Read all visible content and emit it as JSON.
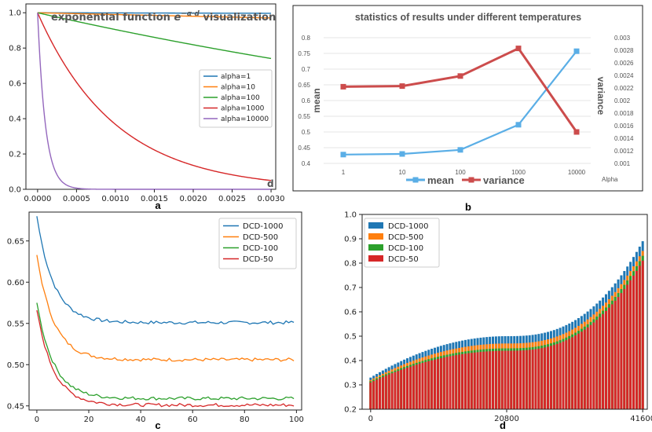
{
  "chart_data": [
    {
      "panel": "a",
      "type": "line",
      "title_text": "exponential function",
      "title_math": "e",
      "title_sup": "−α·d",
      "title_suffix": "visualization",
      "corner_label": "d",
      "xlim": [
        0,
        0.003
      ],
      "ylim": [
        0,
        1.05
      ],
      "x_ticks": [
        "0.0000",
        "0.0005",
        "0.0010",
        "0.0015",
        "0.0020",
        "0.0025",
        "0.0030"
      ],
      "x_tick_values": [
        0,
        0.0005,
        0.001,
        0.0015,
        0.002,
        0.0025,
        0.003
      ],
      "y_ticks": [
        "0.0",
        "0.2",
        "0.4",
        "0.6",
        "0.8",
        "1.0"
      ],
      "y_tick_values": [
        0,
        0.2,
        0.4,
        0.6,
        0.8,
        1.0
      ],
      "series": [
        {
          "name": "alpha=1",
          "alpha": 1,
          "color": "#1f77b4"
        },
        {
          "name": "alpha=10",
          "alpha": 10,
          "color": "#ff7f0e"
        },
        {
          "name": "alpha=100",
          "alpha": 100,
          "color": "#2ca02c"
        },
        {
          "name": "alpha=1000",
          "alpha": 1000,
          "color": "#d62728"
        },
        {
          "name": "alpha=10000",
          "alpha": 10000,
          "color": "#9467bd"
        }
      ]
    },
    {
      "panel": "b",
      "type": "line",
      "title": "statistics of results under different temperatures",
      "categories": [
        "1",
        "10",
        "100",
        "1000",
        "10000"
      ],
      "xlabel": "Alpha",
      "ylabel_left": "mean",
      "ylabel_right": "variance",
      "left_lim": [
        0.4,
        0.8
      ],
      "left_ticks": [
        "0.4",
        "0.45",
        "0.5",
        "0.55",
        "0.6",
        "0.65",
        "0.7",
        "0.75",
        "0.8"
      ],
      "right_lim": [
        0.001,
        0.003
      ],
      "right_ticks": [
        "0.001",
        "0.0012",
        "0.0014",
        "0.0016",
        "0.0018",
        "0.002",
        "0.0022",
        "0.0024",
        "0.0026",
        "0.0028",
        "0.003"
      ],
      "series": [
        {
          "name": "mean",
          "axis": "left",
          "color": "#5aaee6",
          "values": [
            0.428,
            0.43,
            0.443,
            0.523,
            0.757
          ]
        },
        {
          "name": "variance",
          "axis": "right",
          "color": "#cc4c4c",
          "values": [
            0.00222,
            0.00223,
            0.00239,
            0.00283,
            0.0015
          ]
        }
      ]
    },
    {
      "panel": "c",
      "type": "line",
      "xlim": [
        -3,
        102
      ],
      "ylim": [
        0.445,
        0.685
      ],
      "x_ticks": [
        "0",
        "20",
        "40",
        "60",
        "80",
        "100"
      ],
      "x_tick_values": [
        0,
        20,
        40,
        60,
        80,
        100
      ],
      "y_ticks": [
        "0.45",
        "0.50",
        "0.55",
        "0.60",
        "0.65"
      ],
      "y_tick_values": [
        0.45,
        0.5,
        0.55,
        0.6,
        0.65
      ],
      "series": [
        {
          "name": "DCD-1000",
          "color": "#1f77b4",
          "start": 0.68,
          "end": 0.551
        },
        {
          "name": "DCD-500",
          "color": "#ff7f0e",
          "start": 0.633,
          "end": 0.506
        },
        {
          "name": "DCD-100",
          "color": "#2ca02c",
          "start": 0.575,
          "end": 0.459
        },
        {
          "name": "DCD-50",
          "color": "#d62728",
          "start": 0.566,
          "end": 0.451
        }
      ]
    },
    {
      "panel": "d",
      "type": "bar",
      "stacked": true,
      "xlim": [
        0,
        41600
      ],
      "ylim": [
        0.2,
        1.0
      ],
      "x_ticks": [
        "0",
        "20800",
        "41600"
      ],
      "x_tick_values": [
        0,
        20800,
        41600
      ],
      "y_ticks": [
        "0.2",
        "0.3",
        "0.4",
        "0.5",
        "0.6",
        "0.7",
        "0.8",
        "0.9",
        "1.0"
      ],
      "y_tick_values": [
        0.2,
        0.3,
        0.4,
        0.5,
        0.6,
        0.7,
        0.8,
        0.9,
        1.0
      ],
      "series": [
        {
          "name": "DCD-1000",
          "color": "#1f77b4",
          "start": 0.33,
          "mid": 0.5,
          "end": 0.89
        },
        {
          "name": "DCD-500",
          "color": "#ff7f0e",
          "start": 0.32,
          "mid": 0.47,
          "end": 0.85
        },
        {
          "name": "DCD-100",
          "color": "#2ca02c",
          "start": 0.315,
          "mid": 0.45,
          "end": 0.83
        },
        {
          "name": "DCD-50",
          "color": "#d62728",
          "start": 0.31,
          "mid": 0.44,
          "end": 0.81
        }
      ]
    }
  ],
  "panel_labels": [
    "a",
    "b",
    "c",
    "d"
  ]
}
